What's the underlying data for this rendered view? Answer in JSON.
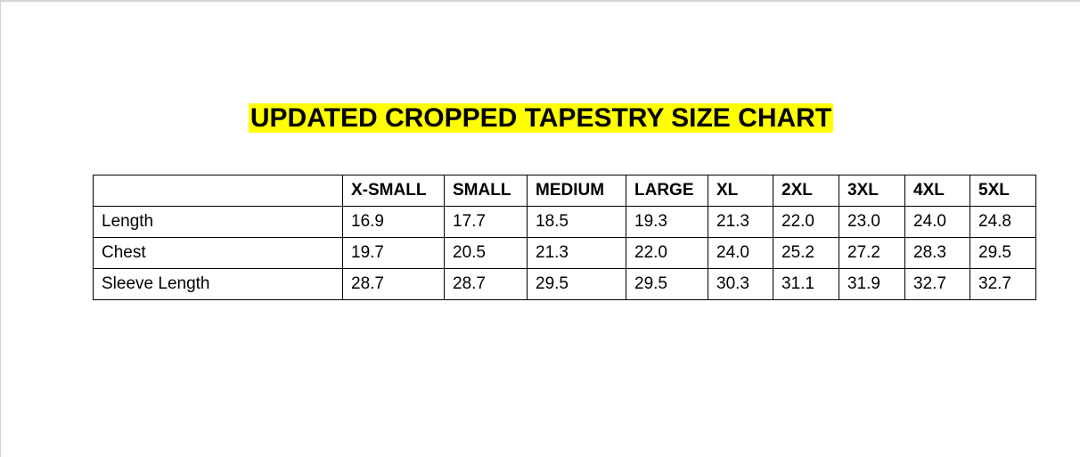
{
  "title": "UPDATED CROPPED TAPESTRY SIZE CHART",
  "table": {
    "header": [
      "X-SMALL",
      "SMALL",
      "MEDIUM",
      "LARGE",
      "XL",
      "2XL",
      "3XL",
      "4XL",
      "5XL"
    ],
    "rows": [
      {
        "label": "Length",
        "values": [
          "16.9",
          "17.7",
          "18.5",
          "19.3",
          "21.3",
          "22.0",
          "23.0",
          "24.0",
          "24.8"
        ]
      },
      {
        "label": "Chest",
        "values": [
          "19.7",
          "20.5",
          "21.3",
          "22.0",
          "24.0",
          "25.2",
          "27.2",
          "28.3",
          "29.5"
        ]
      },
      {
        "label": "Sleeve Length",
        "values": [
          "28.7",
          "28.7",
          "29.5",
          "29.5",
          "30.3",
          "31.1",
          "31.9",
          "32.7",
          "32.7"
        ]
      }
    ]
  }
}
